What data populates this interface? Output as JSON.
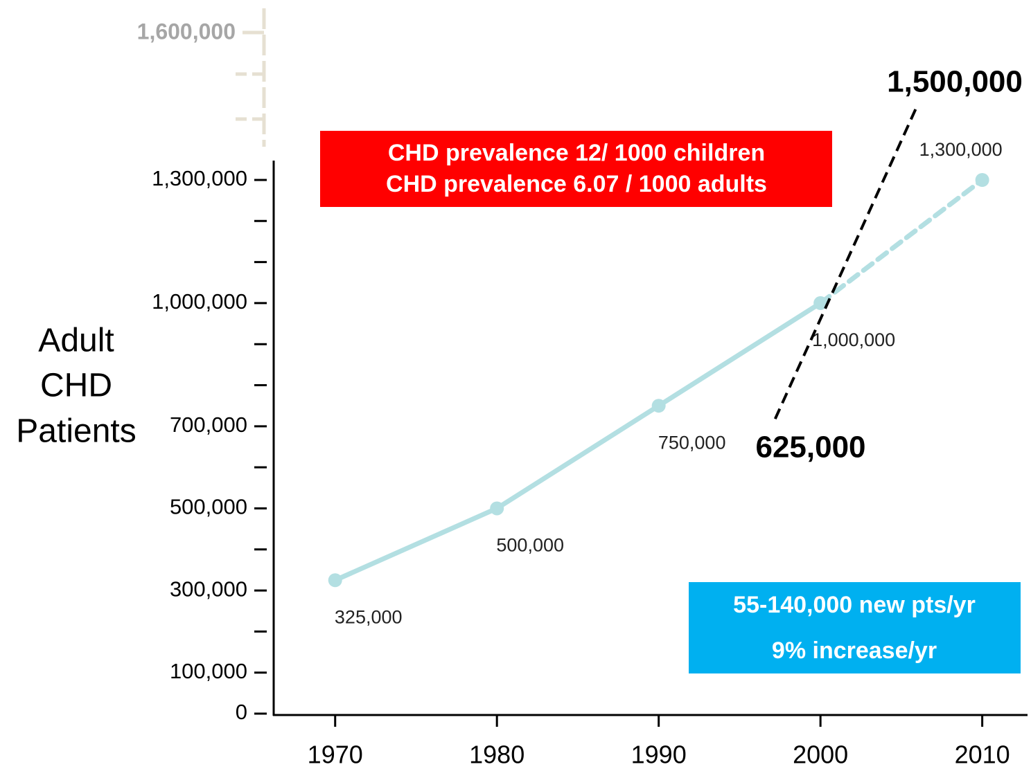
{
  "chart_data": {
    "type": "line",
    "y_label": [
      "Adult",
      "CHD",
      "Patients"
    ],
    "x": [
      1970,
      1980,
      1990,
      2000,
      2010
    ],
    "xlim": [
      1966.2,
      2012.8
    ],
    "xticks": [
      1970,
      1980,
      1990,
      2000,
      2010
    ],
    "ylim": [
      0,
      1300000
    ],
    "yticks": [
      0,
      {
        "value": 100000,
        "label": "100,000"
      },
      {
        "value": 300000,
        "label": "300,000"
      },
      {
        "value": 500000,
        "label": "500,000"
      },
      {
        "value": 700000,
        "label": "700,000"
      },
      {
        "value": 1000000,
        "label": "1,000,000"
      },
      {
        "value": 1300000,
        "label": "1,300,000"
      }
    ],
    "minor_yticks": [
      200000,
      400000,
      600000,
      800000,
      900000,
      1100000,
      1200000
    ],
    "series": [
      {
        "color": "#b3dfe2",
        "values": [
          325000,
          500000,
          750000,
          1000000,
          1300000
        ],
        "value_labels": [
          "325,000",
          "500,000",
          "750,000",
          "1,000,000",
          "1,300,000"
        ],
        "dashed_from_index": 3
      }
    ],
    "projection": {
      "color": "#000000",
      "x": [
        1997.2,
        2005.9
      ],
      "values": [
        718000,
        1474000
      ]
    },
    "annotations": {
      "high": "1,500,000",
      "low": "625,000",
      "ghost_tick": "1,600,000"
    },
    "red_box": [
      "CHD prevalence 12/ 1000 children",
      "CHD prevalence 6.07 / 1000 adults"
    ],
    "blue_box": [
      "55-140,000 new pts/yr",
      "9% increase/yr"
    ]
  }
}
